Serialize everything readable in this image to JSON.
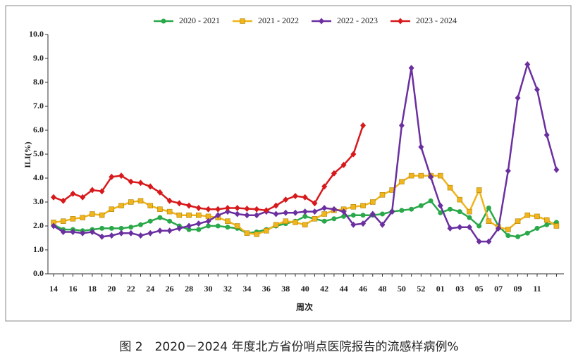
{
  "chart_data": {
    "type": "line",
    "caption": "图 2　2020－2024 年度北方省份哨点医院报告的流感样病例%",
    "xlabel": "周次",
    "ylabel": "ILI(%)",
    "categories": [
      "14",
      null,
      "16",
      null,
      "18",
      null,
      "20",
      null,
      "22",
      null,
      "24",
      null,
      "26",
      null,
      "28",
      null,
      "30",
      null,
      "32",
      null,
      "34",
      null,
      "36",
      null,
      "38",
      null,
      "40",
      null,
      "42",
      null,
      "44",
      null,
      "46",
      null,
      "48",
      null,
      "50",
      null,
      "52",
      null,
      "01",
      null,
      "03",
      null,
      "05",
      null,
      "07",
      null,
      "09",
      null,
      "11",
      null,
      null
    ],
    "ylim": [
      0,
      10
    ],
    "yticks": [
      {
        "value": 0,
        "label": "0.0"
      },
      {
        "value": 1,
        "label": "1.0"
      },
      {
        "value": 2,
        "label": "2.0"
      },
      {
        "value": 3,
        "label": "3.0"
      },
      {
        "value": 4,
        "label": "4.0"
      },
      {
        "value": 5,
        "label": "5.0"
      },
      {
        "value": 6,
        "label": "6.0"
      },
      {
        "value": 7,
        "label": "7.0"
      },
      {
        "value": 8,
        "label": "8.0"
      },
      {
        "value": 9,
        "label": "9.0"
      },
      {
        "value": 10,
        "label": "10.0"
      }
    ],
    "legend": "top",
    "series": [
      {
        "name": "2020 - 2021",
        "color": "#2aa84a",
        "marker": "circle",
        "values": [
          2.05,
          1.85,
          1.85,
          1.8,
          1.85,
          1.9,
          1.9,
          1.9,
          1.95,
          2.05,
          2.2,
          2.35,
          2.2,
          2.0,
          1.85,
          1.85,
          2.0,
          2.0,
          1.95,
          1.9,
          1.7,
          1.75,
          1.85,
          2.0,
          2.1,
          2.2,
          2.4,
          2.3,
          2.2,
          2.3,
          2.4,
          2.45,
          2.45,
          2.45,
          2.5,
          2.6,
          2.65,
          2.7,
          2.85,
          3.05,
          2.55,
          2.7,
          2.6,
          2.35,
          2.0,
          2.75,
          2.0,
          1.6,
          1.55,
          1.7,
          1.9,
          2.05,
          2.15
        ]
      },
      {
        "name": "2021 - 2022",
        "color": "#f0b41c",
        "marker": "square",
        "values": [
          2.15,
          2.2,
          2.3,
          2.35,
          2.5,
          2.45,
          2.7,
          2.85,
          3.0,
          3.05,
          2.85,
          2.7,
          2.6,
          2.45,
          2.45,
          2.45,
          2.4,
          2.35,
          2.2,
          2.0,
          1.7,
          1.65,
          1.8,
          2.05,
          2.2,
          2.15,
          2.05,
          2.3,
          2.5,
          2.65,
          2.7,
          2.8,
          2.85,
          3.0,
          3.3,
          3.5,
          3.85,
          4.1,
          4.1,
          4.1,
          4.1,
          3.6,
          3.1,
          2.6,
          3.5,
          2.2,
          1.95,
          1.85,
          2.2,
          2.45,
          2.4,
          2.25,
          2.0
        ]
      },
      {
        "name": "2022 - 2023",
        "color": "#6b2fa0",
        "marker": "diamond",
        "values": [
          2.0,
          1.75,
          1.75,
          1.7,
          1.75,
          1.55,
          1.6,
          1.7,
          1.7,
          1.6,
          1.7,
          1.8,
          1.8,
          1.9,
          2.0,
          2.1,
          2.2,
          2.45,
          2.6,
          2.5,
          2.45,
          2.45,
          2.6,
          2.5,
          2.55,
          2.55,
          2.6,
          2.6,
          2.75,
          2.7,
          2.6,
          2.05,
          2.1,
          2.5,
          2.05,
          2.6,
          6.2,
          8.6,
          5.3,
          4.05,
          2.85,
          1.9,
          1.95,
          1.95,
          1.35,
          1.35,
          1.9,
          4.3,
          7.35,
          8.75,
          7.7,
          5.8,
          4.35
        ]
      },
      {
        "name": "2023 - 2024",
        "color": "#d7191c",
        "marker": "diamond",
        "values": [
          3.2,
          3.05,
          3.35,
          3.2,
          3.5,
          3.45,
          4.05,
          4.1,
          3.85,
          3.8,
          3.65,
          3.4,
          3.05,
          2.95,
          2.85,
          2.75,
          2.7,
          2.7,
          2.75,
          2.75,
          2.72,
          2.7,
          2.65,
          2.85,
          3.1,
          3.25,
          3.2,
          2.95,
          3.65,
          4.2,
          4.55,
          5.0,
          6.2,
          null,
          null,
          null,
          null,
          null,
          null,
          null,
          null,
          null,
          null,
          null,
          null,
          null,
          null,
          null,
          null,
          null,
          null,
          null,
          null
        ]
      }
    ]
  }
}
